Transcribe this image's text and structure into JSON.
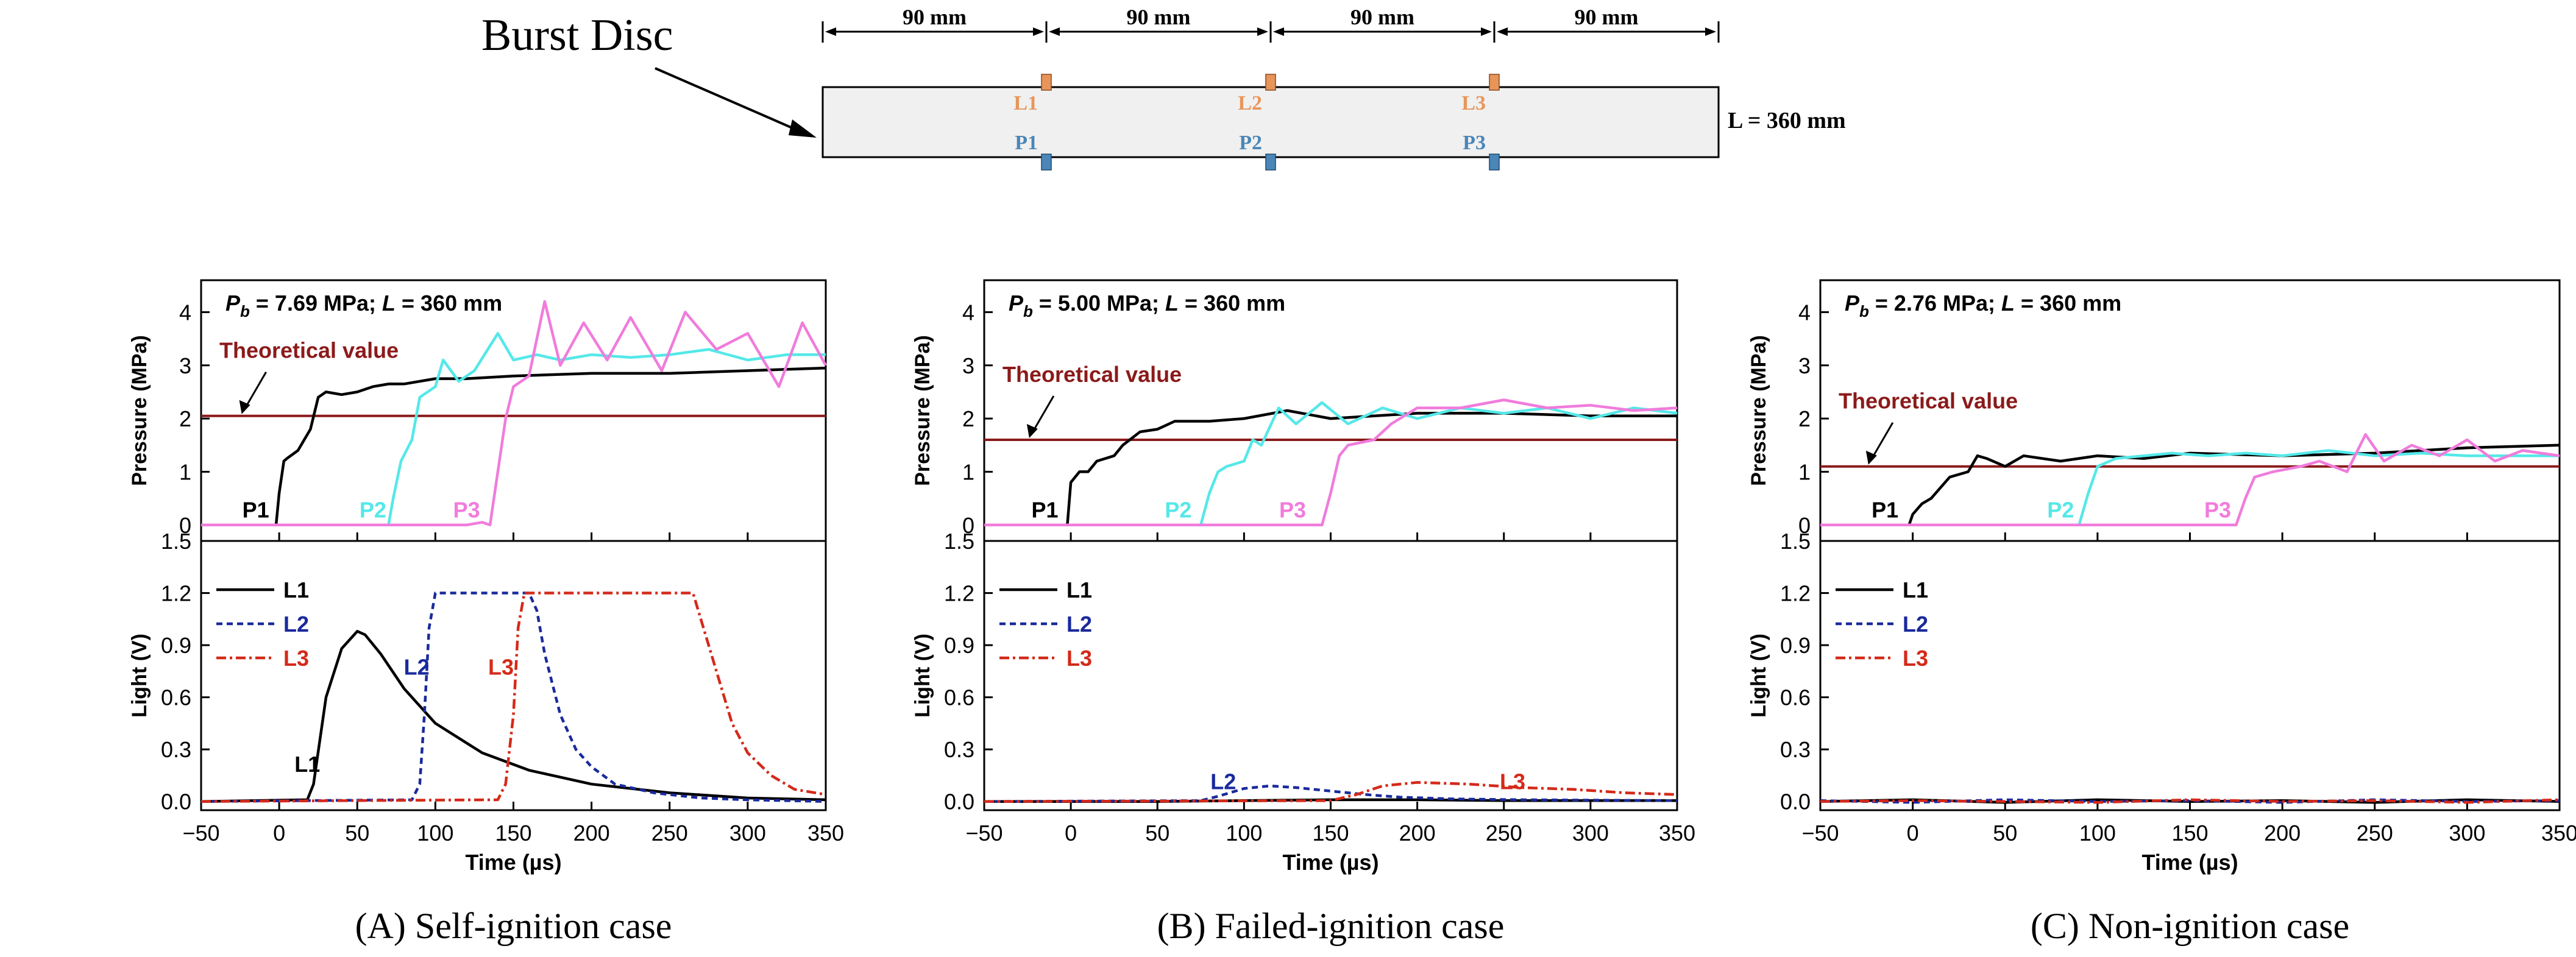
{
  "schematic": {
    "title": "Burst Disc",
    "spacing_labels": [
      "90 mm",
      "90 mm",
      "90 mm",
      "90 mm"
    ],
    "light_sensors": [
      "L1",
      "L2",
      "L3"
    ],
    "pressure_sensors": [
      "P1",
      "P2",
      "P3"
    ],
    "length_label": "L = 360 mm",
    "colors": {
      "tube_fill": "#f0f0f0",
      "light_sensor": "#e8955a",
      "pressure_sensor": "#4a86b8"
    }
  },
  "chart_data": [
    {
      "type": "line",
      "panel_id": "A",
      "caption": "(A) Self-ignition case",
      "pressure": {
        "annotation": "P_b = 7.69 MPa; L = 360 mm",
        "pb_value": "7.69 MPa; ",
        "theory_label": "Theoretical value",
        "theory_value": 2.05,
        "ylabel": "Pressure (MPa)",
        "ylim": [
          -0.3,
          4.6
        ],
        "yticks": [
          0,
          1,
          2,
          3,
          4
        ],
        "series": [
          {
            "name": "P1",
            "color": "#000000",
            "label_at": [
              -15,
              0.3
            ],
            "x": [
              -50,
              -2,
              0,
              3,
              5,
              12,
              20,
              25,
              30,
              40,
              50,
              60,
              70,
              80,
              100,
              120,
              150,
              200,
              250,
              300,
              350
            ],
            "y": [
              0,
              0,
              0.6,
              1.2,
              1.25,
              1.4,
              1.8,
              2.4,
              2.5,
              2.45,
              2.5,
              2.6,
              2.65,
              2.65,
              2.75,
              2.75,
              2.8,
              2.85,
              2.85,
              2.9,
              2.95
            ]
          },
          {
            "name": "P2",
            "color": "#55e8e8",
            "label_at": [
              60,
              0.3
            ],
            "x": [
              -50,
              70,
              73,
              78,
              85,
              90,
              100,
              105,
              115,
              125,
              140,
              150,
              165,
              180,
              200,
              225,
              250,
              275,
              300,
              325,
              350
            ],
            "y": [
              0,
              0,
              0.5,
              1.2,
              1.6,
              2.4,
              2.6,
              3.1,
              2.7,
              2.9,
              3.6,
              3.1,
              3.2,
              3.1,
              3.2,
              3.15,
              3.2,
              3.3,
              3.1,
              3.2,
              3.2
            ]
          },
          {
            "name": "P3",
            "color": "#f07cdc",
            "label_at": [
              120,
              0.3
            ],
            "x": [
              -50,
              120,
              130,
              135,
              140,
              145,
              150,
              160,
              170,
              180,
              195,
              210,
              225,
              245,
              260,
              280,
              300,
              320,
              335,
              350
            ],
            "y": [
              0,
              0,
              0.05,
              0,
              1.0,
              2.0,
              2.6,
              2.8,
              4.2,
              3.0,
              3.8,
              3.1,
              3.9,
              2.9,
              4.0,
              3.3,
              3.6,
              2.6,
              3.8,
              3.0
            ]
          }
        ]
      },
      "light": {
        "ylabel": "Light (V)",
        "ylim": [
          -0.05,
          1.5
        ],
        "yticks": [
          0.0,
          0.3,
          0.6,
          0.9,
          1.2,
          1.5
        ],
        "series": [
          {
            "name": "L1",
            "color": "#000000",
            "dash": "",
            "label_at": [
              5,
              0.22
            ],
            "x": [
              -50,
              18,
              22,
              30,
              40,
              50,
              55,
              65,
              80,
              100,
              130,
              160,
              200,
              250,
              300,
              350
            ],
            "y": [
              0,
              0.01,
              0.1,
              0.6,
              0.88,
              0.98,
              0.96,
              0.85,
              0.65,
              0.45,
              0.28,
              0.18,
              0.1,
              0.05,
              0.02,
              0.01
            ]
          },
          {
            "name": "L2",
            "color": "#1a2a9c",
            "dash": "10,7",
            "label_at": [
              80,
              0.78
            ],
            "x": [
              -50,
              85,
              90,
              93,
              96,
              100,
              160,
              165,
              170,
              180,
              190,
              200,
              215,
              240,
              270,
              300,
              350
            ],
            "y": [
              0,
              0.01,
              0.1,
              0.5,
              1.0,
              1.2,
              1.2,
              1.1,
              0.85,
              0.5,
              0.3,
              0.2,
              0.1,
              0.05,
              0.02,
              0.01,
              0
            ]
          },
          {
            "name": "L3",
            "color": "#d42a1a",
            "dash": "16,6,4,6",
            "label_at": [
              128,
              0.78
            ],
            "x": [
              -50,
              140,
              145,
              150,
              153,
              157,
              265,
              270,
              280,
              290,
              300,
              315,
              330,
              350
            ],
            "y": [
              0,
              0.01,
              0.1,
              0.5,
              1.0,
              1.2,
              1.2,
              1.05,
              0.75,
              0.45,
              0.28,
              0.15,
              0.07,
              0.04
            ]
          }
        ],
        "labels": [
          {
            "name": "L1",
            "x": 18,
            "y": 0.22,
            "color": "#000000"
          },
          {
            "name": "L2",
            "x": 88,
            "y": 0.78,
            "color": "#1a2a9c"
          },
          {
            "name": "L3",
            "x": 142,
            "y": 0.78,
            "color": "#d42a1a"
          }
        ]
      },
      "xlabel": "Time (µs)",
      "xlim": [
        -50,
        350
      ],
      "xticks": [
        -50,
        0,
        50,
        100,
        150,
        200,
        250,
        300,
        350
      ]
    },
    {
      "type": "line",
      "panel_id": "B",
      "caption": "(B) Failed-ignition case",
      "pressure": {
        "annotation": "P_b = 5.00 MPa; L = 360 mm",
        "pb_value": "5.00 MPa; ",
        "theory_label": "Theoretical value",
        "theory_value": 1.6,
        "ylabel": "Pressure (MPa)",
        "ylim": [
          -0.3,
          4.6
        ],
        "yticks": [
          0,
          1,
          2,
          3,
          4
        ],
        "series": [
          {
            "name": "P1",
            "color": "#000000",
            "x": [
              -50,
              -2,
              0,
              5,
              10,
              15,
              25,
              30,
              40,
              50,
              60,
              80,
              100,
              125,
              150,
              200,
              250,
              300,
              350
            ],
            "y": [
              0,
              0,
              0.8,
              1.0,
              1.0,
              1.2,
              1.3,
              1.5,
              1.75,
              1.8,
              1.95,
              1.95,
              2.0,
              2.15,
              2.0,
              2.1,
              2.1,
              2.05,
              2.05
            ]
          },
          {
            "name": "P2",
            "color": "#55e8e8",
            "x": [
              -50,
              75,
              80,
              85,
              90,
              100,
              105,
              110,
              120,
              130,
              145,
              160,
              180,
              200,
              225,
              250,
              275,
              300,
              325,
              350
            ],
            "y": [
              0,
              0,
              0.6,
              1.0,
              1.1,
              1.2,
              1.6,
              1.5,
              2.2,
              1.9,
              2.3,
              1.9,
              2.2,
              2.0,
              2.2,
              2.1,
              2.2,
              2.0,
              2.2,
              2.1
            ]
          },
          {
            "name": "P3",
            "color": "#f07cdc",
            "x": [
              -50,
              145,
              150,
              155,
              160,
              175,
              185,
              200,
              225,
              250,
              275,
              300,
              325,
              350
            ],
            "y": [
              0,
              0,
              0.6,
              1.3,
              1.5,
              1.6,
              1.9,
              2.2,
              2.2,
              2.35,
              2.2,
              2.25,
              2.15,
              2.2
            ]
          }
        ],
        "labels": [
          {
            "name": "P1",
            "x": -15,
            "y": 0.3,
            "color": "#000000"
          },
          {
            "name": "P2",
            "x": 62,
            "y": 0.3,
            "color": "#55e8e8"
          },
          {
            "name": "P3",
            "x": 128,
            "y": 0.3,
            "color": "#f07cdc"
          }
        ]
      },
      "light": {
        "ylabel": "Light (V)",
        "ylim": [
          -0.05,
          1.5
        ],
        "yticks": [
          0.0,
          0.3,
          0.6,
          0.9,
          1.2,
          1.5
        ],
        "series": [
          {
            "name": "L1",
            "color": "#000000",
            "dash": "",
            "x": [
              -50,
              0,
              50,
              100,
              150,
              200,
              250,
              300,
              350
            ],
            "y": [
              0,
              0,
              0,
              0.005,
              0.01,
              0.01,
              0.005,
              0.005,
              0.005
            ]
          },
          {
            "name": "L2",
            "color": "#1a2a9c",
            "dash": "10,7",
            "x": [
              -50,
              75,
              85,
              100,
              115,
              130,
              150,
              170,
              190,
              220,
              260,
              350
            ],
            "y": [
              0,
              0.005,
              0.03,
              0.075,
              0.09,
              0.08,
              0.06,
              0.04,
              0.025,
              0.015,
              0.01,
              0.005
            ]
          },
          {
            "name": "L3",
            "color": "#d42a1a",
            "dash": "16,6,4,6",
            "x": [
              -50,
              150,
              165,
              180,
              200,
              230,
              260,
              290,
              320,
              350
            ],
            "y": [
              0,
              0.005,
              0.04,
              0.09,
              0.11,
              0.1,
              0.08,
              0.07,
              0.05,
              0.04
            ]
          }
        ],
        "labels": [
          {
            "name": "L2",
            "x": 88,
            "y": 0.12,
            "color": "#1a2a9c"
          },
          {
            "name": "L3",
            "x": 255,
            "y": 0.12,
            "color": "#d42a1a"
          }
        ]
      },
      "xlabel": "Time (µs)",
      "xlim": [
        -50,
        350
      ],
      "xticks": [
        -50,
        0,
        50,
        100,
        150,
        200,
        250,
        300,
        350
      ]
    },
    {
      "type": "line",
      "panel_id": "C",
      "caption": "(C) Non-ignition case",
      "pressure": {
        "annotation": "P_b = 2.76 MPa; L = 360 mm",
        "pb_value": "2.76 MPa; ",
        "theory_label": "Theoretical value",
        "theory_value": 1.1,
        "ylabel": "Pressure (MPa)",
        "ylim": [
          -0.3,
          4.6
        ],
        "yticks": [
          0,
          1,
          2,
          3,
          4
        ],
        "series": [
          {
            "name": "P1",
            "color": "#000000",
            "x": [
              -50,
              -2,
              0,
              5,
              10,
              20,
              30,
              35,
              40,
              50,
              60,
              80,
              100,
              125,
              150,
              200,
              250,
              300,
              350
            ],
            "y": [
              0,
              0,
              0.2,
              0.4,
              0.5,
              0.9,
              1.0,
              1.3,
              1.25,
              1.1,
              1.3,
              1.2,
              1.3,
              1.25,
              1.35,
              1.3,
              1.35,
              1.45,
              1.5
            ]
          },
          {
            "name": "P2",
            "color": "#55e8e8",
            "x": [
              -50,
              90,
              95,
              100,
              110,
              125,
              140,
              160,
              180,
              200,
              225,
              250,
              275,
              300,
              325,
              350
            ],
            "y": [
              0,
              0,
              0.6,
              1.1,
              1.25,
              1.3,
              1.35,
              1.3,
              1.35,
              1.3,
              1.4,
              1.3,
              1.35,
              1.3,
              1.3,
              1.3
            ]
          },
          {
            "name": "P3",
            "color": "#f07cdc",
            "x": [
              -50,
              175,
              180,
              185,
              195,
              210,
              220,
              235,
              245,
              255,
              270,
              285,
              300,
              315,
              330,
              350
            ],
            "y": [
              0,
              0,
              0.5,
              0.9,
              1.0,
              1.1,
              1.2,
              1.0,
              1.7,
              1.2,
              1.5,
              1.3,
              1.6,
              1.2,
              1.4,
              1.3
            ]
          }
        ],
        "labels": [
          {
            "name": "P1",
            "x": -15,
            "y": 0.3,
            "color": "#000000"
          },
          {
            "name": "P2",
            "x": 80,
            "y": 0.3,
            "color": "#55e8e8"
          },
          {
            "name": "P3",
            "x": 165,
            "y": 0.3,
            "color": "#f07cdc"
          }
        ]
      },
      "light": {
        "ylabel": "Light (V)",
        "ylim": [
          -0.05,
          1.5
        ],
        "yticks": [
          0.0,
          0.3,
          0.6,
          0.9,
          1.2,
          1.5
        ],
        "series": [
          {
            "name": "L1",
            "color": "#000000",
            "dash": "",
            "x": [
              -50,
              0,
              50,
              100,
              150,
              200,
              250,
              300,
              350
            ],
            "y": [
              0,
              0.01,
              -0.005,
              0.01,
              0,
              0.005,
              -0.005,
              0.01,
              0
            ]
          },
          {
            "name": "L2",
            "color": "#1a2a9c",
            "dash": "10,7",
            "x": [
              -50,
              0,
              50,
              100,
              150,
              200,
              250,
              300,
              350
            ],
            "y": [
              0.005,
              -0.005,
              0.01,
              0,
              0.005,
              -0.005,
              0.01,
              0,
              0.005
            ]
          },
          {
            "name": "L3",
            "color": "#d42a1a",
            "dash": "16,6,4,6",
            "x": [
              -50,
              0,
              50,
              100,
              150,
              200,
              250,
              300,
              350
            ],
            "y": [
              0,
              0.005,
              0,
              -0.005,
              0.01,
              0,
              0.005,
              -0.005,
              0.01
            ]
          }
        ],
        "labels": []
      },
      "xlabel": "Time (µs)",
      "xlim": [
        -50,
        350
      ],
      "xticks": [
        -50,
        0,
        50,
        100,
        150,
        200,
        250,
        300,
        350
      ]
    }
  ]
}
